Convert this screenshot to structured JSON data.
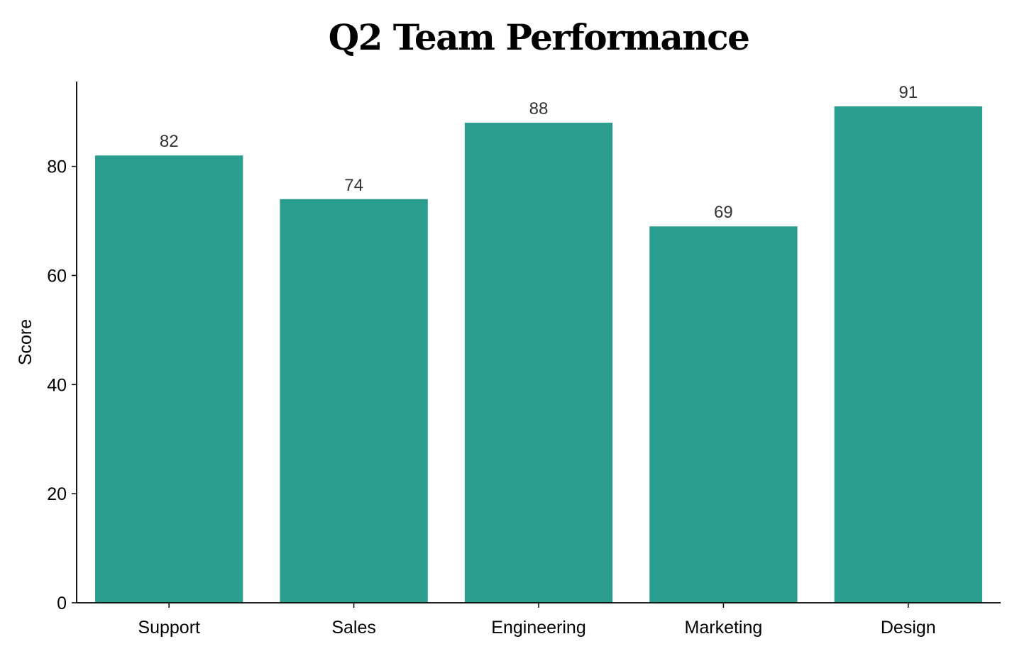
{
  "chart_data": {
    "type": "bar",
    "title": "Q2 Team Performance",
    "xlabel": "",
    "ylabel": "Score",
    "categories": [
      "Support",
      "Sales",
      "Engineering",
      "Marketing",
      "Design"
    ],
    "values": [
      82,
      74,
      88,
      69,
      91
    ],
    "data_labels": [
      "82",
      "74",
      "88",
      "69",
      "91"
    ],
    "yticks": [
      0,
      20,
      40,
      60,
      80
    ],
    "ytick_labels": [
      "0",
      "20",
      "40",
      "60",
      "80"
    ],
    "ylim": [
      0,
      95.55
    ],
    "grid": false,
    "legend": "none",
    "bar_color": "#2a9d8f"
  }
}
